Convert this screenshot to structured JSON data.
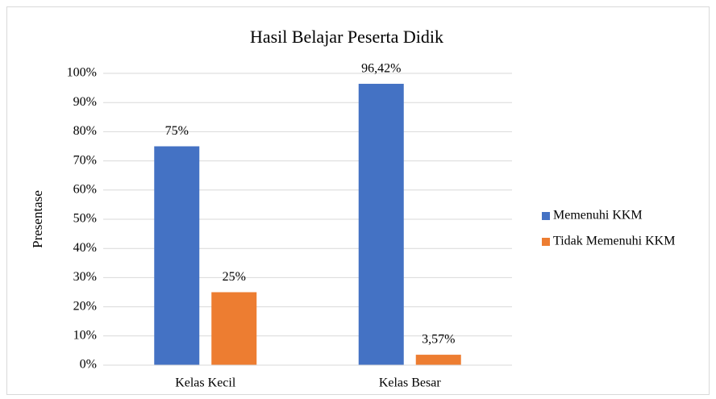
{
  "chart_data": {
    "type": "bar",
    "title": "Hasil Belajar Peserta Didik",
    "y_label": "Presentase",
    "categories": [
      "Kelas Kecil",
      "Kelas Besar"
    ],
    "series": [
      {
        "name": "Memenuhi KKM",
        "color": "#4472c4",
        "values": [
          75,
          96.42
        ],
        "value_labels": [
          "75%",
          "96,42%"
        ]
      },
      {
        "name": "Tidak Memenuhi KKM",
        "color": "#ed7d31",
        "values": [
          25,
          3.57
        ],
        "value_labels": [
          "25%",
          "3,57%"
        ]
      }
    ],
    "ylim": [
      0,
      100
    ],
    "yticks": [
      {
        "value": 0,
        "label": "0%"
      },
      {
        "value": 10,
        "label": "10%"
      },
      {
        "value": 20,
        "label": "20%"
      },
      {
        "value": 30,
        "label": "30%"
      },
      {
        "value": 40,
        "label": "40%"
      },
      {
        "value": 50,
        "label": "50%"
      },
      {
        "value": 60,
        "label": "60%"
      },
      {
        "value": 70,
        "label": "70%"
      },
      {
        "value": 80,
        "label": "80%"
      },
      {
        "value": 90,
        "label": "90%"
      },
      {
        "value": 100,
        "label": "100%"
      }
    ],
    "grid": true,
    "legend": "right"
  }
}
